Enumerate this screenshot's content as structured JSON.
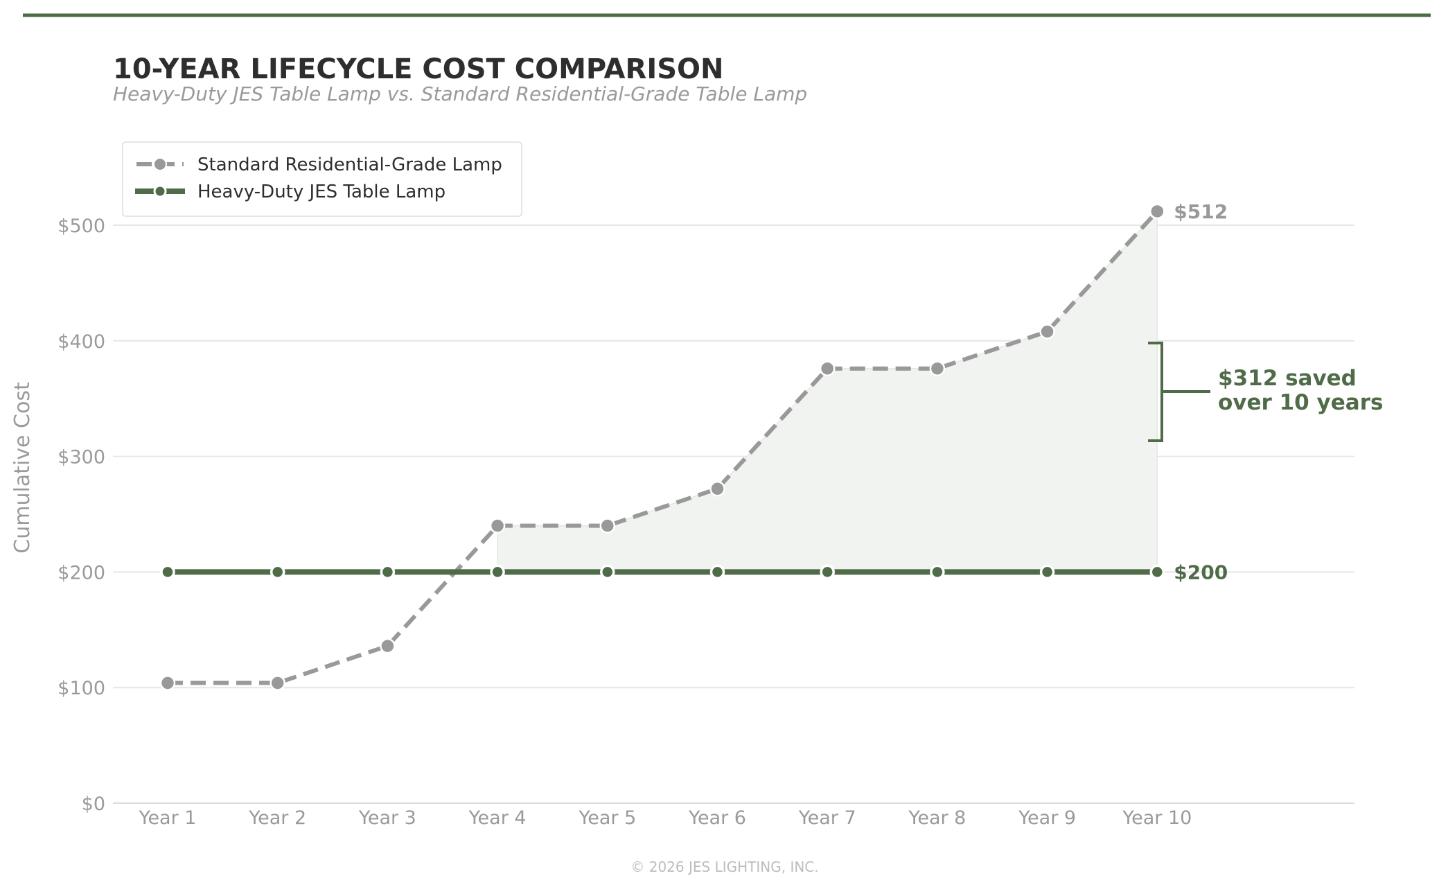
{
  "title": "10-YEAR LIFECYCLE COST COMPARISON",
  "subtitle": "Heavy-Duty JES Table Lamp  vs.  Standard Residential-Grade Table Lamp",
  "footer": "© 2026 JES LIGHTING, INC.",
  "colors": {
    "brand": "#4f6b47",
    "standard": "#999999",
    "grid": "#e6e6e6",
    "fill": "#f1f3f0",
    "text": "#2e2e2e",
    "muted": "#9a9a9a"
  },
  "chart_data": {
    "type": "line",
    "title": "10-YEAR LIFECYCLE COST COMPARISON",
    "ylabel": "Cumulative Cost",
    "xlabel": "",
    "categories": [
      "Year 1",
      "Year 2",
      "Year 3",
      "Year 4",
      "Year 5",
      "Year 6",
      "Year 7",
      "Year 8",
      "Year 9",
      "Year 10"
    ],
    "ylim": [
      0,
      500
    ],
    "yticks": [
      0,
      100,
      200,
      300,
      400,
      500
    ],
    "ytick_labels": [
      "$0",
      "$100",
      "$200",
      "$300",
      "$400",
      "$500"
    ],
    "grid": "horizontal",
    "legend_position": "top-left",
    "series": [
      {
        "name": "Standard Residential-Grade Lamp",
        "style": "dashed",
        "color": "#999999",
        "values": [
          104,
          104,
          136,
          240,
          240,
          272,
          376,
          376,
          408,
          512
        ],
        "end_label": "$512"
      },
      {
        "name": "Heavy-Duty JES Table Lamp",
        "style": "solid",
        "color": "#4f6b47",
        "values": [
          200,
          200,
          200,
          200,
          200,
          200,
          200,
          200,
          200,
          200
        ],
        "end_label": "$200"
      }
    ],
    "annotation": {
      "line1": "$312 saved",
      "line2": "over 10 years"
    }
  }
}
